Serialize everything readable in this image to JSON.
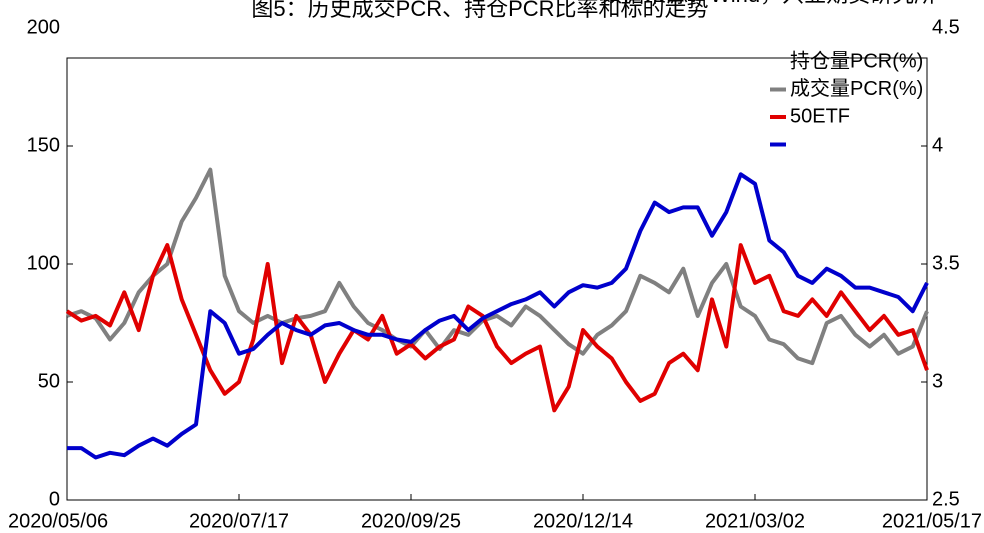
{
  "chart_data": {
    "type": "line",
    "title": "图5：历史成交PCR、持仓PCR比率和标的走势",
    "source": "数据来源：Wind，兴业期货研究所",
    "categories": [
      "2020/05/06",
      null,
      null,
      null,
      null,
      null,
      null,
      null,
      null,
      null,
      null,
      null,
      "2020/07/17",
      null,
      null,
      null,
      null,
      null,
      null,
      null,
      null,
      null,
      null,
      null,
      "2020/09/25",
      null,
      null,
      null,
      null,
      null,
      null,
      null,
      null,
      null,
      null,
      null,
      "2020/12/14",
      null,
      null,
      null,
      null,
      null,
      null,
      null,
      null,
      null,
      null,
      null,
      "2021/03/02",
      null,
      null,
      null,
      null,
      null,
      null,
      null,
      null,
      null,
      null,
      null,
      "2021/05/17"
    ],
    "series": [
      {
        "name": "持仓量PCR(%)",
        "color": "#808080",
        "values": [
          78,
          80,
          77,
          68,
          75,
          88,
          95,
          100,
          118,
          128,
          140,
          95,
          80,
          75,
          78,
          75,
          77,
          78,
          80,
          92,
          82,
          75,
          72,
          68,
          65,
          72,
          64,
          72,
          70,
          76,
          78,
          74,
          82,
          78,
          72,
          66,
          62,
          70,
          74,
          80,
          95,
          92,
          88,
          98,
          78,
          92,
          100,
          82,
          78,
          68,
          66,
          60,
          58,
          75,
          78,
          70,
          65,
          70,
          62,
          65,
          80
        ]
      },
      {
        "name": "成交量PCR(%)",
        "color": "#e00000",
        "values": [
          80,
          76,
          78,
          74,
          88,
          72,
          95,
          108,
          85,
          70,
          55,
          45,
          50,
          68,
          100,
          58,
          78,
          70,
          50,
          62,
          72,
          68,
          78,
          62,
          66,
          60,
          65,
          68,
          82,
          78,
          65,
          58,
          62,
          65,
          38,
          48,
          72,
          65,
          60,
          50,
          42,
          45,
          58,
          62,
          55,
          85,
          65,
          108,
          92,
          95,
          80,
          78,
          85,
          78,
          88,
          80,
          72,
          78,
          70,
          72,
          55
        ]
      },
      {
        "name": "50ETF",
        "color": "#0000cc",
        "axis": "y2",
        "values": [
          2.72,
          2.72,
          2.68,
          2.7,
          2.69,
          2.73,
          2.76,
          2.73,
          2.78,
          2.82,
          3.3,
          3.25,
          3.12,
          3.14,
          3.2,
          3.25,
          3.22,
          3.2,
          3.24,
          3.25,
          3.22,
          3.2,
          3.2,
          3.18,
          3.17,
          3.22,
          3.26,
          3.28,
          3.22,
          3.27,
          3.3,
          3.33,
          3.35,
          3.38,
          3.32,
          3.38,
          3.41,
          3.4,
          3.42,
          3.48,
          3.64,
          3.76,
          3.72,
          3.74,
          3.74,
          3.62,
          3.72,
          3.88,
          3.84,
          3.6,
          3.55,
          3.45,
          3.42,
          3.48,
          3.45,
          3.4,
          3.4,
          3.38,
          3.36,
          3.3,
          3.42
        ]
      }
    ],
    "ylim": [
      0,
      200
    ],
    "yticks": [
      0,
      50,
      100,
      150,
      200
    ],
    "y2lim": [
      2.5,
      4.5
    ],
    "y2ticks": [
      2.5,
      3,
      3.5,
      4,
      4.5
    ],
    "grid": false
  }
}
